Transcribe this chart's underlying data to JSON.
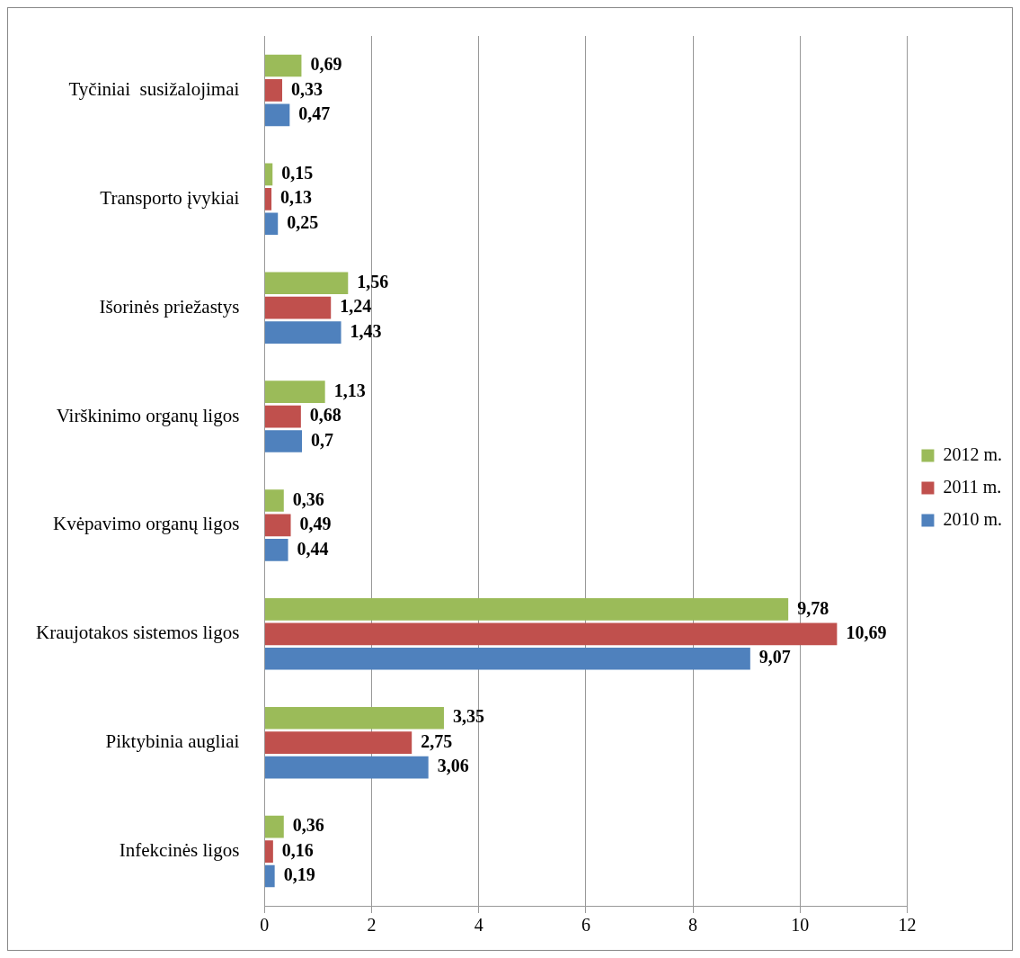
{
  "chart_data": {
    "type": "bar",
    "orientation": "horizontal",
    "categories": [
      "Tyčiniai  susižalojimai",
      "Transporto įvykiai",
      "Išorinės priežastys",
      "Virškinimo organų ligos",
      "Kvėpavimo organų ligos",
      "Kraujotakos sistemos ligos",
      "Piktybinia augliai",
      "Infekcinės ligos"
    ],
    "series": [
      {
        "name": "2012 m.",
        "color": "#9bbb59",
        "values": [
          0.69,
          0.15,
          1.56,
          1.13,
          0.36,
          9.78,
          3.35,
          0.36
        ],
        "value_labels": [
          "0,69",
          "0,15",
          "1,56",
          "1,13",
          "0,36",
          "9,78",
          "3,35",
          "0,36"
        ]
      },
      {
        "name": "2011 m.",
        "color": "#c0504d",
        "values": [
          0.33,
          0.13,
          1.24,
          0.68,
          0.49,
          10.69,
          2.75,
          0.16
        ],
        "value_labels": [
          "0,33",
          "0,13",
          "1,24",
          "0,68",
          "0,49",
          "10,69",
          "2,75",
          "0,16"
        ]
      },
      {
        "name": "2010 m.",
        "color": "#4f81bd",
        "values": [
          0.47,
          0.25,
          1.43,
          0.7,
          0.44,
          9.07,
          3.06,
          0.19
        ],
        "value_labels": [
          "0,47",
          "0,25",
          "1,43",
          "0,7",
          "0,44",
          "9,07",
          "3,06",
          "0,19"
        ]
      }
    ],
    "xlim": [
      0,
      12
    ],
    "xticks": [
      0,
      2,
      4,
      6,
      8,
      10,
      12
    ],
    "grid": "x",
    "legend": "right"
  }
}
